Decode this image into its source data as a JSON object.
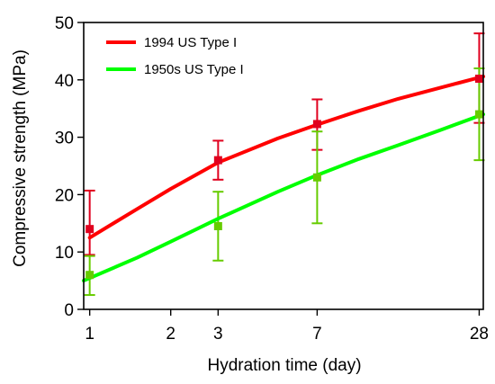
{
  "chart_data": {
    "type": "line",
    "xlabel": "Hydration time (day)",
    "ylabel": "Compressive strength (MPa)",
    "x_scale": "log",
    "xlim": [
      0.95,
      29
    ],
    "ylim": [
      0,
      50
    ],
    "x_ticks": [
      1,
      2,
      3,
      7,
      28
    ],
    "y_ticks": [
      0,
      10,
      20,
      30,
      40,
      50
    ],
    "grid": false,
    "legend_position": "top-left",
    "series": [
      {
        "name": "1994 US Type I",
        "color": "#ff0000",
        "errorbar_color": "#e0001e",
        "x": [
          1,
          3,
          7,
          28
        ],
        "y": [
          14,
          26,
          32.3,
          40.2
        ],
        "y_low": [
          9.5,
          22.6,
          27.8,
          32.5
        ],
        "y_high": [
          20.7,
          29.4,
          36.6,
          48.1
        ],
        "fit": [
          [
            1,
            12.5
          ],
          [
            1.5,
            17.5
          ],
          [
            2,
            21
          ],
          [
            3,
            25.6
          ],
          [
            5,
            29.8
          ],
          [
            7,
            32.2
          ],
          [
            10,
            34.6
          ],
          [
            14,
            36.7
          ],
          [
            20,
            38.6
          ],
          [
            29,
            40.6
          ]
        ]
      },
      {
        "name": "1950s US Type I",
        "color": "#00ff00",
        "errorbar_color": "#66cc00",
        "x": [
          1,
          3,
          7,
          28
        ],
        "y": [
          6,
          14.5,
          23,
          34
        ],
        "y_low": [
          2.5,
          8.5,
          15,
          26
        ],
        "y_high": [
          9.3,
          20.5,
          31,
          42
        ],
        "fit": [
          [
            0.95,
            5
          ],
          [
            1.5,
            9
          ],
          [
            2,
            11.8
          ],
          [
            3,
            15.8
          ],
          [
            5,
            20.5
          ],
          [
            7,
            23.4
          ],
          [
            10,
            26.2
          ],
          [
            14,
            28.6
          ],
          [
            20,
            31.2
          ],
          [
            29,
            34
          ]
        ]
      }
    ]
  }
}
